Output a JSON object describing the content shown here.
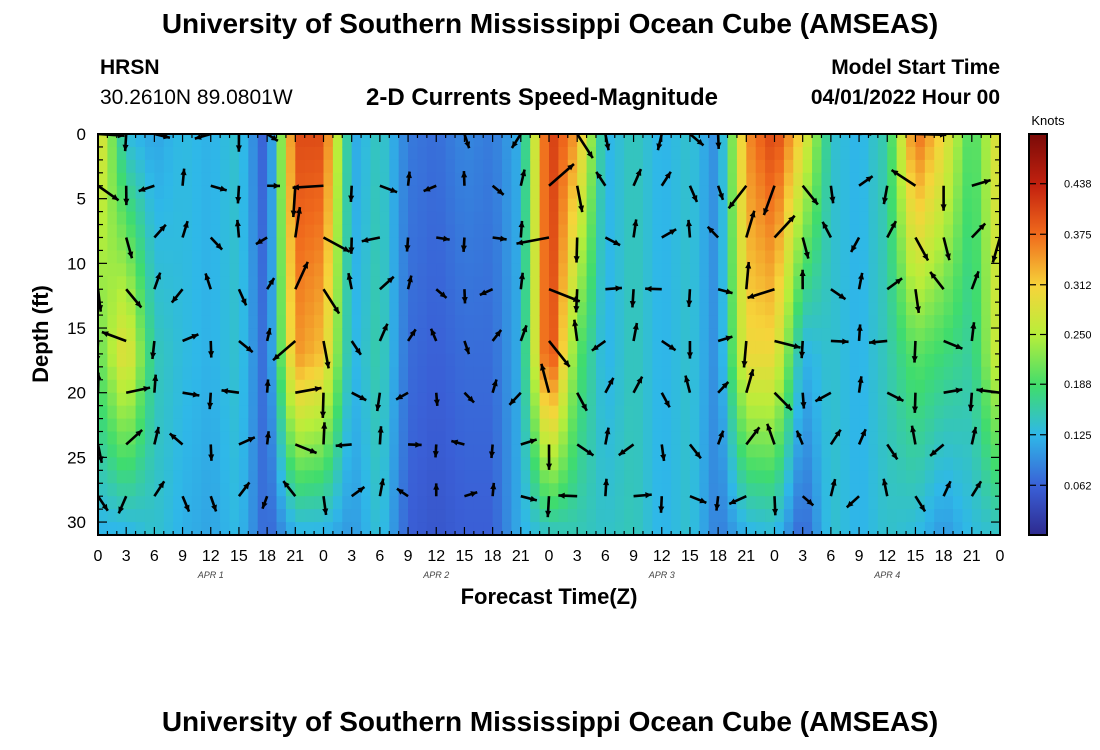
{
  "header": {
    "title": "University of Southern Mississippi Ocean Cube (AMSEAS)",
    "station": "HRSN",
    "coordinates": "30.2610N  89.0801W",
    "subtitle": "2-D Currents Speed-Magnitude",
    "model_start_label": "Model Start Time",
    "model_start_value": "04/01/2022 Hour 00"
  },
  "footer": {
    "title": "University of Southern Mississippi Ocean Cube (AMSEAS)"
  },
  "colors": {
    "low": "#3a3ab8",
    "mid": "#4fd64f",
    "high": "#b31a0d",
    "arrow": "#000000"
  },
  "chart_data": {
    "type": "heatmap",
    "title": "2-D Currents Speed-Magnitude",
    "xlabel": "Forecast Time(Z)",
    "ylabel": "Depth (ft)",
    "x_tick_labels": [
      "0",
      "3",
      "6",
      "9",
      "12",
      "15",
      "18",
      "21",
      "0",
      "3",
      "6",
      "9",
      "12",
      "15",
      "18",
      "21",
      "0",
      "3",
      "6",
      "9",
      "12",
      "15",
      "18",
      "21",
      "0",
      "3",
      "6",
      "9",
      "12",
      "15",
      "18",
      "21",
      "0"
    ],
    "x_range_hours": [
      0,
      96
    ],
    "day_labels": [
      {
        "label": "APR 1",
        "hour": 12
      },
      {
        "label": "APR 2",
        "hour": 36
      },
      {
        "label": "APR 3",
        "hour": 60
      },
      {
        "label": "APR 4",
        "hour": 84
      }
    ],
    "y_ticks": [
      0,
      5,
      10,
      15,
      20,
      25,
      30
    ],
    "ylim": [
      0,
      31
    ],
    "colorbar": {
      "title": "Knots",
      "ticks": [
        0.062,
        0.125,
        0.188,
        0.25,
        0.312,
        0.375,
        0.438
      ],
      "tick_labels": [
        "0.062",
        "0.125",
        "0.188",
        "0.250",
        "0.312",
        "0.375",
        "0.438"
      ],
      "range": [
        0.0,
        0.5
      ]
    },
    "arrow_depths_ft": [
      0,
      4,
      8,
      12,
      16,
      20,
      24,
      28
    ],
    "approx_speed_by_hour_knots": {
      "hours": [
        0,
        3,
        6,
        9,
        12,
        15,
        18,
        21,
        24,
        27,
        30,
        33,
        36,
        39,
        42,
        45,
        48,
        51,
        54,
        57,
        60,
        63,
        66,
        69,
        72,
        75,
        78,
        81,
        84,
        87,
        90,
        93,
        96
      ],
      "surface": [
        0.3,
        0.13,
        0.11,
        0.13,
        0.12,
        0.14,
        0.05,
        0.4,
        0.4,
        0.11,
        0.15,
        0.08,
        0.07,
        0.09,
        0.08,
        0.12,
        0.42,
        0.34,
        0.12,
        0.15,
        0.12,
        0.14,
        0.09,
        0.35,
        0.41,
        0.3,
        0.14,
        0.12,
        0.16,
        0.38,
        0.3,
        0.18,
        0.3
      ],
      "mid_depth": [
        0.2,
        0.3,
        0.15,
        0.13,
        0.12,
        0.14,
        0.06,
        0.35,
        0.32,
        0.12,
        0.16,
        0.07,
        0.06,
        0.07,
        0.07,
        0.12,
        0.42,
        0.2,
        0.12,
        0.15,
        0.12,
        0.14,
        0.09,
        0.3,
        0.3,
        0.12,
        0.14,
        0.12,
        0.15,
        0.2,
        0.18,
        0.16,
        0.28
      ],
      "bottom": [
        0.12,
        0.12,
        0.14,
        0.12,
        0.11,
        0.13,
        0.06,
        0.12,
        0.12,
        0.1,
        0.14,
        0.06,
        0.05,
        0.06,
        0.06,
        0.12,
        0.14,
        0.15,
        0.14,
        0.15,
        0.12,
        0.14,
        0.08,
        0.12,
        0.13,
        0.06,
        0.14,
        0.12,
        0.14,
        0.13,
        0.1,
        0.13,
        0.14
      ]
    }
  }
}
